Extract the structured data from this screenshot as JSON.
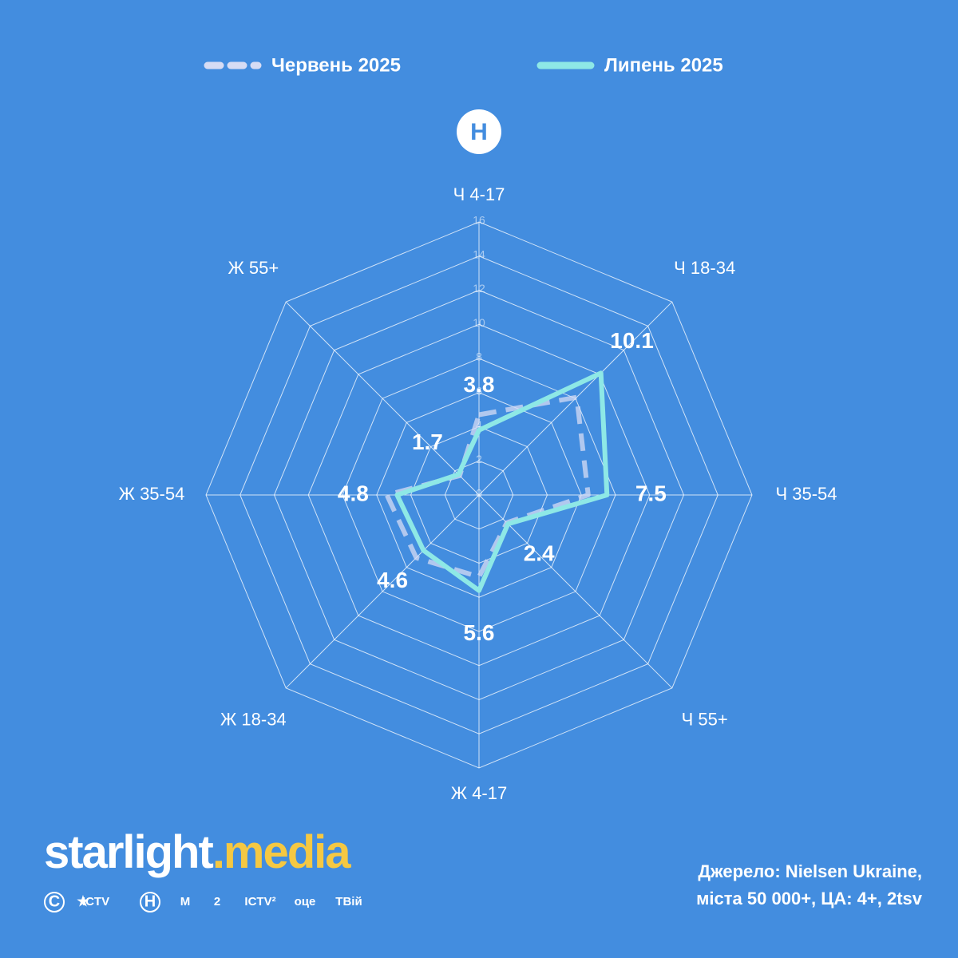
{
  "chart_data": {
    "type": "radar",
    "categories": [
      "Ч 4-17",
      "Ч 18-34",
      "Ч 35-54",
      "Ч 55+",
      "Ж 4-17",
      "Ж 18-34",
      "Ж 35-54",
      "Ж 55+"
    ],
    "series": [
      {
        "name": "Червень 2025",
        "color": "#d6dcf4",
        "dash": true,
        "data_labels": false,
        "values": [
          4.7,
          8.1,
          6.4,
          2.3,
          4.8,
          5.2,
          5.4,
          1.6
        ]
      },
      {
        "name": "Липень 2025",
        "color": "#8ee8e6",
        "dash": false,
        "data_labels": true,
        "values": [
          3.8,
          10.1,
          7.5,
          2.4,
          5.6,
          4.6,
          4.8,
          1.7
        ]
      }
    ],
    "rlim": [
      0,
      16
    ],
    "rticks": [
      0,
      2,
      4,
      6,
      8,
      10,
      12,
      14,
      16
    ],
    "grid": true,
    "legend": "top"
  },
  "channel_badge": "Н",
  "brand": {
    "main": "starlight",
    "accent": ".media"
  },
  "logos": [
    "С",
    "ICTV",
    "Н",
    "M",
    "2",
    "ICTV²",
    "оце",
    "ТВій"
  ],
  "source": [
    "Джерело: Nielsen Ukraine,",
    "міста 50 000+, ЦА: 4+, 2tsv"
  ]
}
